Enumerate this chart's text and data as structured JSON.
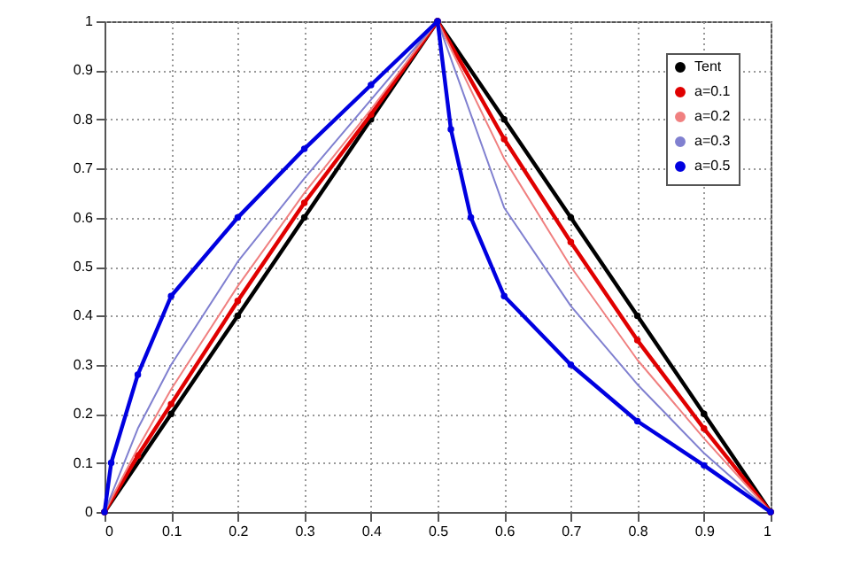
{
  "chart_data": {
    "type": "line",
    "xlim": [
      0,
      1
    ],
    "ylim": [
      0,
      1
    ],
    "xticks": [
      0,
      0.1,
      0.2,
      0.3,
      0.4,
      0.5,
      0.6,
      0.7,
      0.8,
      0.9,
      1
    ],
    "yticks": [
      0,
      0.1,
      0.2,
      0.3,
      0.4,
      0.5,
      0.6,
      0.7,
      0.8,
      0.9,
      1
    ],
    "grid": true,
    "legend": "top right",
    "series": [
      {
        "name": "Tent",
        "color": "#000000",
        "marker": "circle",
        "x": [
          0,
          0.1,
          0.2,
          0.3,
          0.4,
          0.5,
          0.6,
          0.7,
          0.8,
          0.9,
          1
        ],
        "values": [
          0,
          0.2,
          0.4,
          0.6,
          0.8,
          1,
          0.8,
          0.6,
          0.4,
          0.2,
          0
        ]
      },
      {
        "name": "a=0.1",
        "color": "#e00000",
        "marker": "circle",
        "x": [
          0,
          0.05,
          0.1,
          0.2,
          0.3,
          0.4,
          0.5,
          0.6,
          0.7,
          0.8,
          0.9,
          1
        ],
        "values": [
          0,
          0.115,
          0.22,
          0.43,
          0.63,
          0.81,
          1,
          0.76,
          0.55,
          0.35,
          0.17,
          0
        ]
      },
      {
        "name": "a=0.2",
        "color": "#f08080",
        "marker": "none",
        "x": [
          0,
          0.05,
          0.1,
          0.2,
          0.3,
          0.4,
          0.5,
          0.6,
          0.7,
          0.8,
          0.9,
          1
        ],
        "values": [
          0,
          0.13,
          0.25,
          0.46,
          0.65,
          0.82,
          1,
          0.72,
          0.5,
          0.31,
          0.15,
          0
        ]
      },
      {
        "name": "a=0.3",
        "color": "#8080d0",
        "marker": "none",
        "x": [
          0,
          0.05,
          0.1,
          0.2,
          0.3,
          0.4,
          0.5,
          0.6,
          0.7,
          0.8,
          0.9,
          1
        ],
        "values": [
          0,
          0.17,
          0.3,
          0.51,
          0.68,
          0.84,
          1,
          0.62,
          0.42,
          0.26,
          0.12,
          0
        ]
      },
      {
        "name": "a=0.5",
        "color": "#0000e0",
        "marker": "circle",
        "x": [
          0,
          0.01,
          0.05,
          0.1,
          0.2,
          0.3,
          0.4,
          0.5,
          0.52,
          0.55,
          0.6,
          0.7,
          0.8,
          0.9,
          1
        ],
        "values": [
          0,
          0.1,
          0.28,
          0.44,
          0.6,
          0.74,
          0.87,
          1,
          0.78,
          0.6,
          0.44,
          0.3,
          0.185,
          0.095,
          0
        ]
      }
    ]
  }
}
